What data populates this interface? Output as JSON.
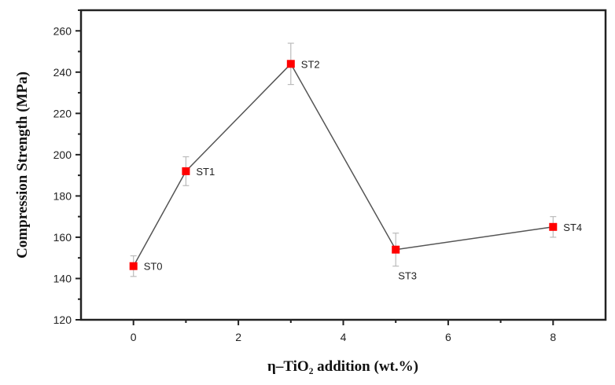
{
  "chart_data": {
    "type": "line",
    "title": "",
    "xlabel": "η–TiO₂ addition (wt.%)",
    "ylabel": "Compression Strength (MPa)",
    "xlim": [
      -1,
      9
    ],
    "ylim": [
      120,
      270
    ],
    "xticks": [
      0,
      2,
      4,
      6,
      8
    ],
    "yticks": [
      120,
      140,
      160,
      180,
      200,
      220,
      240,
      260
    ],
    "grid": false,
    "series": [
      {
        "name": "Compression Strength",
        "color": "#ff0000",
        "line_color": "#555555",
        "points": [
          {
            "label": "ST0",
            "x": 0,
            "y": 146,
            "err": 5
          },
          {
            "label": "ST1",
            "x": 1,
            "y": 192,
            "err": 7
          },
          {
            "label": "ST2",
            "x": 3,
            "y": 244,
            "err": 10
          },
          {
            "label": "ST3",
            "x": 5,
            "y": 154,
            "err": 8
          },
          {
            "label": "ST4",
            "x": 8,
            "y": 165,
            "err": 5
          }
        ]
      }
    ]
  }
}
